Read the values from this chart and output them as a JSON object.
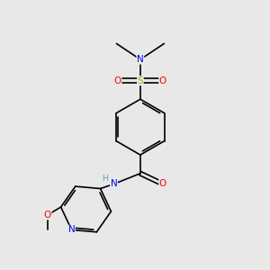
{
  "bg_color": "#e8e8e8",
  "atom_colors": {
    "C": "#000000",
    "H": "#5f9ea0",
    "N": "#0000ff",
    "O": "#ff0000",
    "S": "#ccaa00"
  },
  "bond_color": "#000000",
  "bond_lw": 1.2,
  "font_size_atoms": 7.5,
  "font_size_small": 6.5
}
